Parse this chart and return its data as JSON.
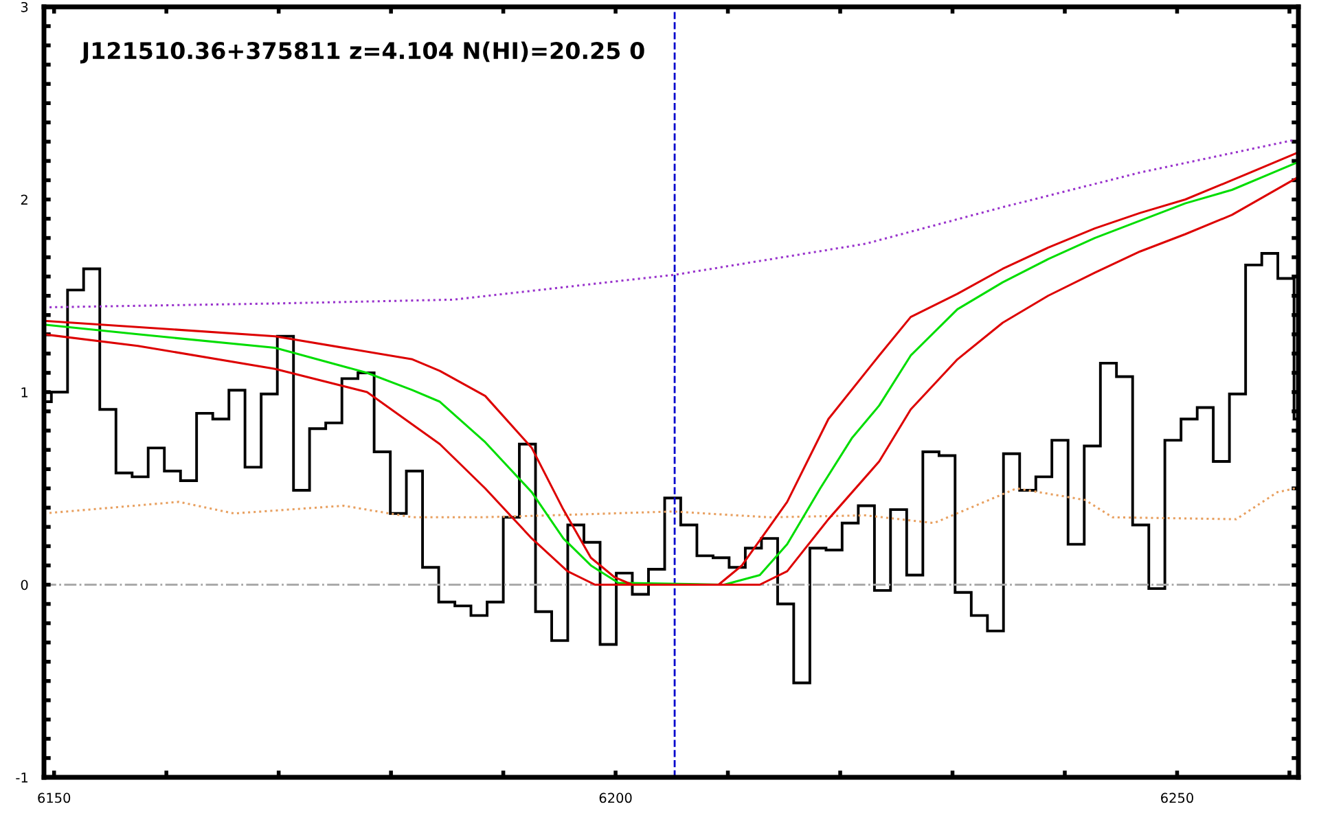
{
  "chart_data": {
    "type": "line",
    "annotations": [
      "J121510.36+375811 z=4.104 N(HI)=20.25 0"
    ],
    "xlim": [
      6149.1,
      6260.8
    ],
    "ylim": [
      -1,
      3
    ],
    "xticks": [
      6150,
      {
        "value": 6160,
        "label": null
      },
      {
        "value": 6170,
        "label": null
      },
      {
        "value": 6180,
        "label": null
      },
      {
        "value": 6190,
        "label": null
      },
      6200,
      {
        "value": 6210,
        "label": null
      },
      {
        "value": 6220,
        "label": null
      },
      {
        "value": 6230,
        "label": null
      },
      {
        "value": 6240,
        "label": null
      },
      6250,
      {
        "value": 6260,
        "label": null
      }
    ],
    "yticks": [
      -1,
      {
        "value": -0.9,
        "label": null
      },
      {
        "value": -0.8,
        "label": null
      },
      {
        "value": -0.7,
        "label": null
      },
      {
        "value": -0.6,
        "label": null
      },
      {
        "value": -0.5,
        "label": null
      },
      {
        "value": -0.4,
        "label": null
      },
      {
        "value": -0.3,
        "label": null
      },
      {
        "value": -0.2,
        "label": null
      },
      {
        "value": -0.1,
        "label": null
      },
      0,
      {
        "value": 0.1,
        "label": null
      },
      {
        "value": 0.2,
        "label": null
      },
      {
        "value": 0.3,
        "label": null
      },
      {
        "value": 0.4,
        "label": null
      },
      {
        "value": 0.5,
        "label": null
      },
      {
        "value": 0.6,
        "label": null
      },
      {
        "value": 0.7,
        "label": null
      },
      {
        "value": 0.8,
        "label": null
      },
      {
        "value": 0.9,
        "label": null
      },
      1,
      {
        "value": 1.1,
        "label": null
      },
      {
        "value": 1.2,
        "label": null
      },
      {
        "value": 1.3,
        "label": null
      },
      {
        "value": 1.4,
        "label": null
      },
      {
        "value": 1.5,
        "label": null
      },
      {
        "value": 1.6,
        "label": null
      },
      {
        "value": 1.7,
        "label": null
      },
      {
        "value": 1.8,
        "label": null
      },
      {
        "value": 1.9,
        "label": null
      },
      2,
      {
        "value": 2.1,
        "label": null
      },
      {
        "value": 2.2,
        "label": null
      },
      {
        "value": 2.3,
        "label": null
      },
      {
        "value": 2.4,
        "label": null
      },
      {
        "value": 2.5,
        "label": null
      },
      {
        "value": 2.6,
        "label": null
      },
      {
        "value": 2.7,
        "label": null
      },
      {
        "value": 2.8,
        "label": null
      },
      {
        "value": 2.9,
        "label": null
      },
      3
    ],
    "grid": false,
    "legend": false,
    "ref_lines": [
      {
        "axis": "y",
        "value": 0,
        "color": "#aaaaaa",
        "line_style": "dashdot"
      },
      {
        "axis": "x",
        "value": 6205.26,
        "color": "#0000cc",
        "line_style": "dashed"
      }
    ],
    "series": [
      {
        "type": "histogram",
        "color": "#000000",
        "bins": [
          6149.1,
          6149.76,
          6151.2,
          6152.63,
          6154.07,
          6155.51,
          6156.95,
          6158.38,
          6159.82,
          6161.26,
          6162.69,
          6164.13,
          6165.57,
          6167.0,
          6168.44,
          6169.88,
          6171.32,
          6172.75,
          6174.19,
          6175.63,
          6177.06,
          6178.5,
          6179.94,
          6181.37,
          6182.81,
          6184.25,
          6185.69,
          6187.12,
          6188.56,
          6190.0,
          6191.43,
          6192.87,
          6194.31,
          6195.74,
          6197.18,
          6198.62,
          6200.06,
          6201.49,
          6202.93,
          6204.37,
          6205.8,
          6207.24,
          6208.68,
          6210.11,
          6211.55,
          6212.99,
          6214.43,
          6215.86,
          6217.3,
          6218.74,
          6220.17,
          6221.61,
          6223.05,
          6224.48,
          6225.92,
          6227.36,
          6228.8,
          6230.23,
          6231.67,
          6233.11,
          6234.54,
          6235.98,
          6237.42,
          6238.85,
          6240.29,
          6241.73,
          6243.17,
          6244.6,
          6246.04,
          6247.48,
          6248.91,
          6250.35,
          6251.79,
          6253.22,
          6254.66,
          6256.1,
          6257.54,
          6258.97,
          6260.41,
          6260.8
        ],
        "values": [
          0.95,
          1.0,
          1.53,
          1.64,
          0.91,
          0.58,
          0.56,
          0.71,
          0.59,
          0.54,
          0.89,
          0.86,
          1.01,
          0.61,
          0.99,
          1.29,
          0.49,
          0.81,
          0.84,
          1.07,
          1.1,
          0.69,
          0.37,
          0.59,
          0.09,
          -0.09,
          -0.11,
          -0.16,
          -0.09,
          0.35,
          0.73,
          -0.14,
          -0.29,
          0.31,
          0.22,
          -0.31,
          0.06,
          -0.05,
          0.08,
          0.45,
          0.31,
          0.15,
          0.14,
          0.09,
          0.19,
          0.24,
          -0.1,
          -0.51,
          0.19,
          0.18,
          0.32,
          0.41,
          -0.03,
          0.39,
          0.05,
          0.69,
          0.67,
          -0.04,
          -0.16,
          -0.24,
          0.68,
          0.49,
          0.56,
          0.75,
          0.21,
          0.72,
          1.15,
          1.08,
          0.31,
          -0.02,
          0.75,
          0.86,
          0.92,
          0.64,
          0.99,
          1.66,
          1.72,
          1.59,
          0.86
        ]
      },
      {
        "color": "#9933cc",
        "line_style": "dotted",
        "x": [
          6149.1,
          6169.68,
          6185.57,
          6205.38,
          6222.25,
          6234.47,
          6246.7,
          6260.51
        ],
        "values": [
          1.44,
          1.46,
          1.48,
          1.61,
          1.77,
          1.96,
          2.14,
          2.31
        ]
      },
      {
        "color": "#e8a060",
        "line_style": "dotted",
        "x": [
          6149.1,
          6161.12,
          6166.01,
          6175.79,
          6181.91,
          6188.02,
          6194.13,
          6205.13,
          6213.69,
          6222.25,
          6228.36,
          6235.7,
          6241.81,
          6244.25,
          6255.26,
          6258.92,
          6260.51
        ],
        "values": [
          0.37,
          0.43,
          0.37,
          0.41,
          0.35,
          0.35,
          0.36,
          0.38,
          0.35,
          0.36,
          0.32,
          0.5,
          0.44,
          0.35,
          0.34,
          0.48,
          0.5
        ]
      },
      {
        "color": "#00dd00",
        "line_style": "solid",
        "x": [
          6149.1,
          6157.46,
          6169.68,
          6177.87,
          6181.91,
          6184.35,
          6188.39,
          6192.54,
          6195.35,
          6197.8,
          6200.24,
          6209.66,
          6212.84,
          6215.28,
          6218.22,
          6221.03,
          6223.47,
          6226.28,
          6230.44,
          6234.47,
          6238.51,
          6242.67,
          6246.7,
          6250.73,
          6254.89,
          6260.6
        ],
        "values": [
          1.35,
          1.3,
          1.23,
          1.1,
          1.01,
          0.95,
          0.74,
          0.48,
          0.24,
          0.1,
          0.01,
          0,
          0.05,
          0.21,
          0.5,
          0.76,
          0.93,
          1.19,
          1.43,
          1.57,
          1.69,
          1.8,
          1.89,
          1.98,
          2.05,
          2.19
        ]
      },
      {
        "color": "#dd0000",
        "line_style": "solid",
        "x": [
          6149.1,
          6169.68,
          6181.91,
          6184.35,
          6188.39,
          6192.54,
          6195.35,
          6197.8,
          6199.88,
          6201.47,
          6209.17,
          6211.25,
          6215.28,
          6218.95,
          6223.47,
          6226.28,
          6230.44,
          6234.47,
          6238.51,
          6242.67,
          6246.7,
          6250.73,
          6254.89,
          6260.6
        ],
        "values": [
          1.37,
          1.29,
          1.17,
          1.11,
          0.98,
          0.71,
          0.39,
          0.14,
          0.04,
          0,
          0,
          0.1,
          0.43,
          0.86,
          1.19,
          1.39,
          1.51,
          1.64,
          1.75,
          1.85,
          1.93,
          2.0,
          2.1,
          2.24
        ]
      },
      {
        "color": "#dd0000",
        "line_style": "solid",
        "x": [
          6149.1,
          6157.46,
          6169.68,
          6177.87,
          6184.35,
          6188.39,
          6192.54,
          6195.72,
          6198.17,
          6212.84,
          6215.28,
          6218.95,
          6223.47,
          6226.28,
          6230.44,
          6234.47,
          6238.51,
          6242.67,
          6246.7,
          6250.73,
          6254.89,
          6260.6
        ],
        "values": [
          1.3,
          1.24,
          1.12,
          1.0,
          0.73,
          0.5,
          0.24,
          0.07,
          0,
          0,
          0.07,
          0.34,
          0.64,
          0.91,
          1.17,
          1.36,
          1.5,
          1.62,
          1.73,
          1.82,
          1.92,
          2.11
        ]
      }
    ]
  }
}
